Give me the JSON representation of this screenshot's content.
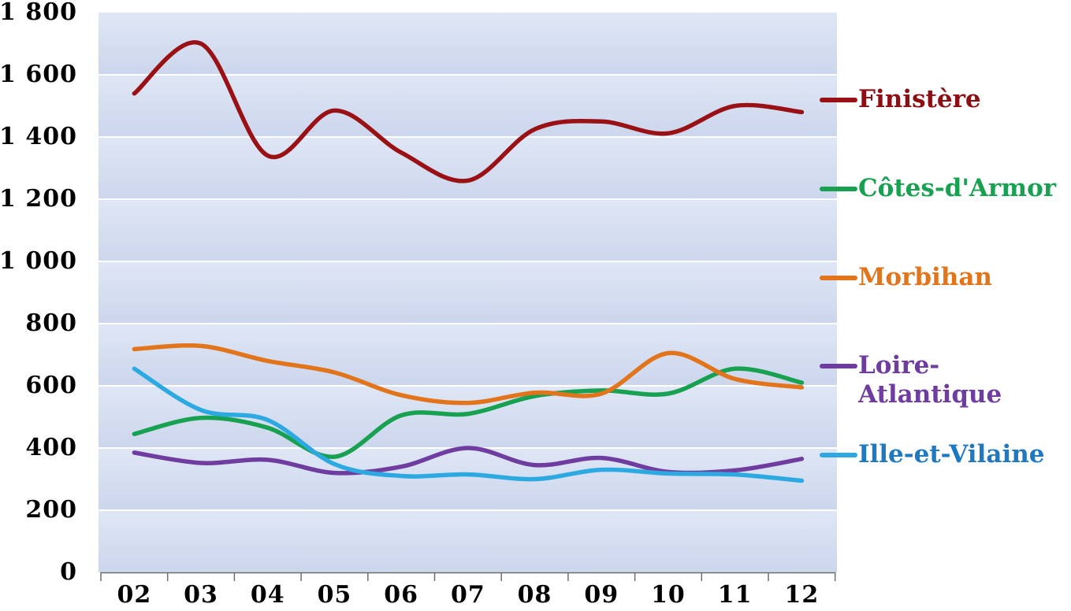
{
  "chart_data": {
    "type": "line",
    "title": "",
    "categories": [
      "02",
      "03",
      "04",
      "05",
      "06",
      "07",
      "08",
      "09",
      "10",
      "11",
      "12"
    ],
    "ylim": [
      0,
      1800
    ],
    "ytick_step": 200,
    "y_tick_labels_top_down": [
      "1 800",
      "1 600",
      "1 400",
      "1 200",
      "1 000",
      "800",
      "600",
      "400",
      "200",
      "0"
    ],
    "grid": "horizontal white gridlines every 200",
    "legend_position": "right",
    "smoothed_lines": true,
    "series": [
      {
        "name": "Finistère",
        "color": "#9A1115",
        "label_color": "#8C1013",
        "values": [
          1540,
          1700,
          1340,
          1485,
          1350,
          1260,
          1425,
          1450,
          1412,
          1500,
          1480
        ]
      },
      {
        "name": "Côtes-d'Armor",
        "color": "#18A150",
        "label_color": "#18A150",
        "values": [
          445,
          497,
          465,
          372,
          505,
          510,
          567,
          585,
          575,
          655,
          610
        ]
      },
      {
        "name": "Morbihan",
        "color": "#E2751C",
        "label_color": "#E2751C",
        "values": [
          718,
          728,
          680,
          643,
          570,
          545,
          578,
          575,
          705,
          622,
          595
        ]
      },
      {
        "name": "Loire-Atlantique",
        "legend_lines": "Loire-\nAtlantique",
        "color": "#6F3C9F",
        "label_color": "#6F3C9F",
        "values": [
          385,
          352,
          362,
          320,
          340,
          400,
          345,
          368,
          323,
          328,
          365
        ]
      },
      {
        "name": "Ille-et-Vilaine",
        "color": "#2CA9E1",
        "label_color": "#1E79C0",
        "values": [
          655,
          522,
          490,
          348,
          310,
          315,
          300,
          330,
          318,
          315,
          295
        ]
      }
    ],
    "plot_background": {
      "band_top_color": "#dfe7f6",
      "band_bottom_color": "#ccd6ec",
      "gridline_color": "#ffffff"
    },
    "axis": {
      "line_color": "#6E6E6E",
      "tick_color": "#6E6E6E",
      "text_color": "#000000"
    }
  }
}
